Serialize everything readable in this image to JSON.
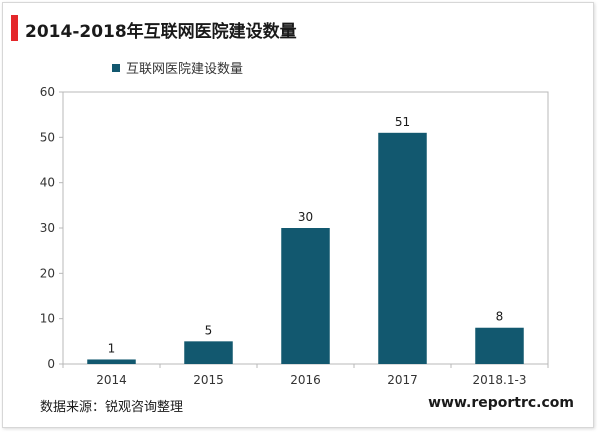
{
  "chart_data": {
    "type": "bar",
    "title": "2014-2018年互联网医院建设数量",
    "categories": [
      "2014",
      "2015",
      "2016",
      "2017",
      "2018.1-3"
    ],
    "series": [
      {
        "name": "互联网医院建设数量",
        "values": [
          1,
          5,
          30,
          51,
          8
        ]
      }
    ],
    "data_labels": [
      "1",
      "5",
      "30",
      "51",
      "8"
    ],
    "ylim": [
      0,
      60
    ],
    "yticks": [
      0,
      10,
      20,
      30,
      40,
      50,
      60
    ],
    "legend_position": "top-left",
    "grid": false
  },
  "footer": {
    "source": "数据来源：锐观咨询整理",
    "website": "www.reportrc.com"
  },
  "colors": {
    "bar": "#12586f",
    "title_accent": "#e4272a",
    "axis": "#b8b8b8",
    "plot_border": "#b8b8b8"
  }
}
